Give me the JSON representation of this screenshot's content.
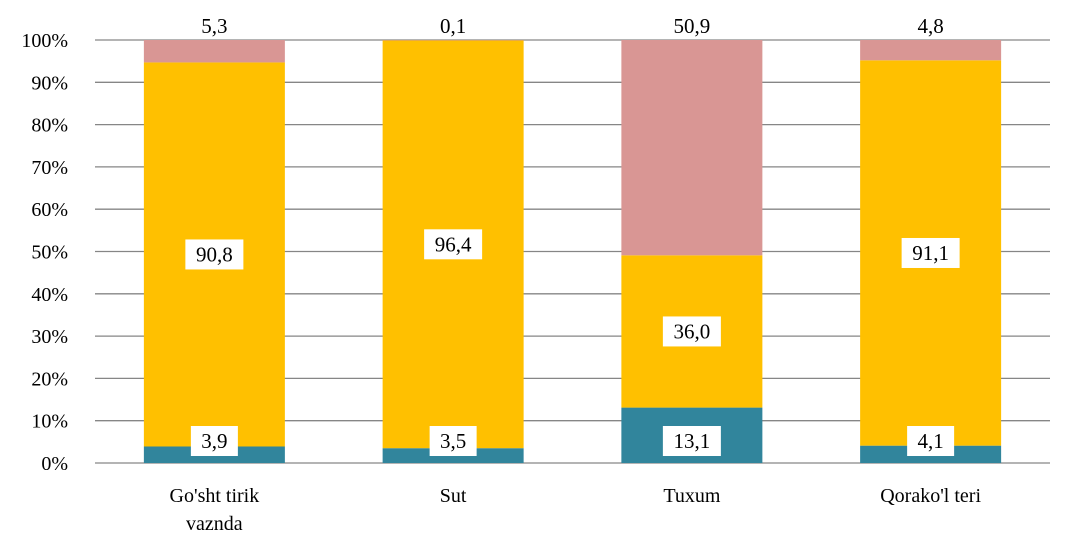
{
  "chart_data": {
    "type": "bar",
    "stacked": true,
    "percent_stacked": true,
    "categories": [
      [
        "Go'sht tirik",
        "vaznda"
      ],
      [
        "Sut"
      ],
      [
        "Tuxum"
      ],
      [
        "Qorako'l teri"
      ]
    ],
    "series": [
      {
        "color": "#31859c",
        "values": [
          3.9,
          3.5,
          13.1,
          4.1
        ],
        "labels": [
          "3,9",
          "3,5",
          "13,1",
          "4,1"
        ]
      },
      {
        "color": "#ffc000",
        "values": [
          90.8,
          96.4,
          36.0,
          91.1
        ],
        "labels": [
          "90,8",
          "96,4",
          "36,0",
          "91,1"
        ]
      },
      {
        "color": "#d99694",
        "values": [
          5.3,
          0.1,
          50.9,
          4.8
        ],
        "labels": [
          "5,3",
          "0,1",
          "50,9",
          "4,8"
        ]
      }
    ],
    "y_ticks": [
      "0%",
      "10%",
      "20%",
      "30%",
      "40%",
      "50%",
      "60%",
      "70%",
      "80%",
      "90%",
      "100%"
    ],
    "ylim": [
      0,
      100
    ],
    "grid": true,
    "legend": "none"
  }
}
